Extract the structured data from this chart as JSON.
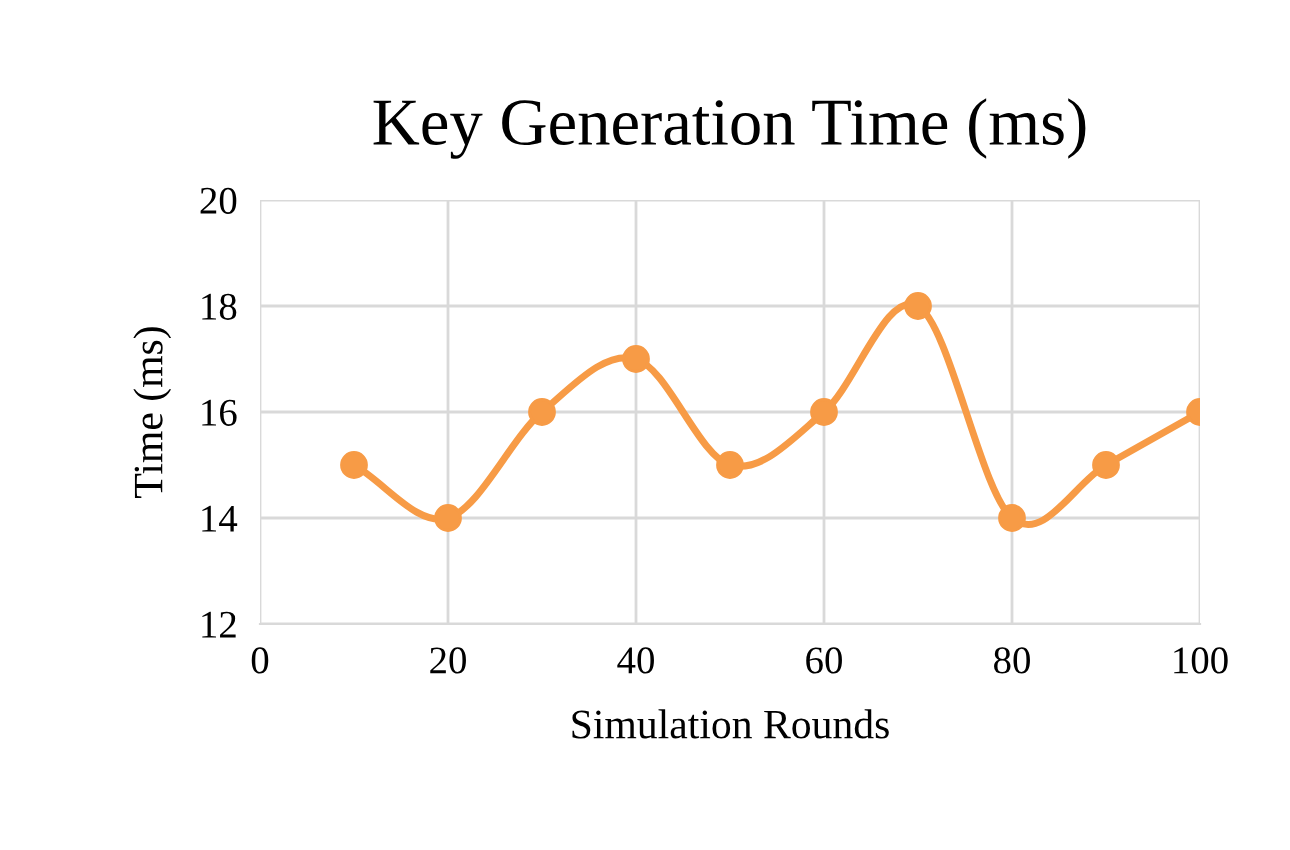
{
  "chart_data": {
    "type": "line",
    "title": "Key Generation Time (ms)",
    "xlabel": "Simulation Rounds",
    "ylabel": "Time (ms)",
    "x": [
      10,
      20,
      30,
      40,
      50,
      60,
      70,
      80,
      90,
      100
    ],
    "series": [
      {
        "color": "#f79b46",
        "values": [
          15,
          14,
          16,
          17,
          15,
          16,
          18,
          14,
          15,
          16
        ]
      }
    ],
    "xlim": [
      0,
      100
    ],
    "xticks": [
      0,
      20,
      40,
      60,
      80,
      100
    ],
    "ylim": [
      12,
      20
    ],
    "yticks": [
      12,
      14,
      16,
      18,
      20
    ],
    "grid": true,
    "legend": false,
    "marker": "circle",
    "line_style": "solid"
  }
}
